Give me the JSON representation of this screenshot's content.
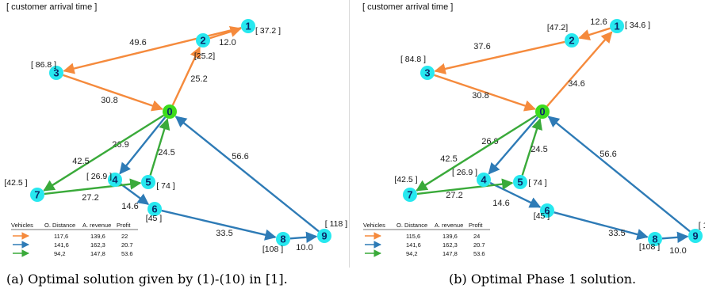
{
  "colors": {
    "orange": "#f58a3c",
    "blue": "#2e7bb6",
    "green": "#3aaa3a",
    "node": "#27e8ef",
    "depot": "#3cdc1c"
  },
  "panels": [
    {
      "header": "[ customer arrival time ]",
      "nodes": [
        {
          "id": "0",
          "depot": true
        },
        {
          "id": "1",
          "arrival": "[ 37.2 ]"
        },
        {
          "id": "2",
          "arrival": "[25.2]"
        },
        {
          "id": "3",
          "arrival": "[ 86.8 ]"
        },
        {
          "id": "4",
          "arrival": "[ 26.9 ]"
        },
        {
          "id": "5",
          "arrival": "[ 74 ]"
        },
        {
          "id": "6",
          "arrival": "[45 ]"
        },
        {
          "id": "7",
          "arrival": "[42.5 ]"
        },
        {
          "id": "8",
          "arrival": "[108 ]"
        },
        {
          "id": "9",
          "arrival": "[ 118 ]"
        }
      ],
      "edges": [
        {
          "from": "0",
          "to": "2",
          "color": "orange",
          "label": "25.2"
        },
        {
          "from": "2",
          "to": "1",
          "color": "orange",
          "label": "12.0"
        },
        {
          "from": "1",
          "to": "3",
          "color": "orange",
          "label": "49.6"
        },
        {
          "from": "3",
          "to": "0",
          "color": "orange",
          "label": "30.8"
        },
        {
          "from": "0",
          "to": "4",
          "color": "blue",
          "label": "26.9"
        },
        {
          "from": "4",
          "to": "6",
          "color": "blue",
          "label": "14.6"
        },
        {
          "from": "6",
          "to": "8",
          "color": "blue",
          "label": "33.5"
        },
        {
          "from": "8",
          "to": "9",
          "color": "blue",
          "label": "10.0"
        },
        {
          "from": "9",
          "to": "0",
          "color": "blue",
          "label": "56.6"
        },
        {
          "from": "0",
          "to": "7",
          "color": "green",
          "label": "42.5"
        },
        {
          "from": "7",
          "to": "5",
          "color": "green",
          "label": "27.2"
        },
        {
          "from": "5",
          "to": "0",
          "color": "green",
          "label": "24.5"
        }
      ],
      "table": {
        "headers": [
          "Vehicles",
          "O. Distance",
          "A. revenue",
          "Profit"
        ],
        "rows": [
          {
            "color": "orange",
            "cells": [
              "117,6",
              "139,6",
              "22"
            ]
          },
          {
            "color": "blue",
            "cells": [
              "141,6",
              "162,3",
              "20.7"
            ]
          },
          {
            "color": "green",
            "cells": [
              "94,2",
              "147,8",
              "53.6"
            ]
          }
        ]
      },
      "caption": "(a) Optimal solution given by (1)-(10) in [1]."
    },
    {
      "header": "[ customer arrival time ]",
      "nodes": [
        {
          "id": "0",
          "depot": true
        },
        {
          "id": "1",
          "arrival": "[ 34.6 ]"
        },
        {
          "id": "2",
          "arrival": "[47.2]"
        },
        {
          "id": "3",
          "arrival": "[ 84.8 ]"
        },
        {
          "id": "4",
          "arrival": "[ 26.9 ]"
        },
        {
          "id": "5",
          "arrival": "[ 74 ]"
        },
        {
          "id": "6",
          "arrival": "[45 ]"
        },
        {
          "id": "7",
          "arrival": "[42.5 ]"
        },
        {
          "id": "8",
          "arrival": "[108 ]"
        },
        {
          "id": "9",
          "arrival": "[ 118 ]"
        }
      ],
      "edges": [
        {
          "from": "0",
          "to": "1",
          "color": "orange",
          "label": "34.6"
        },
        {
          "from": "1",
          "to": "2",
          "color": "orange",
          "label": "12.6"
        },
        {
          "from": "2",
          "to": "3",
          "color": "orange",
          "label": "37.6"
        },
        {
          "from": "3",
          "to": "0",
          "color": "orange",
          "label": "30.8"
        },
        {
          "from": "0",
          "to": "4",
          "color": "blue",
          "label": "26.9"
        },
        {
          "from": "4",
          "to": "6",
          "color": "blue",
          "label": "14.6"
        },
        {
          "from": "6",
          "to": "8",
          "color": "blue",
          "label": "33.5"
        },
        {
          "from": "8",
          "to": "9",
          "color": "blue",
          "label": "10.0"
        },
        {
          "from": "9",
          "to": "0",
          "color": "blue",
          "label": "56.6"
        },
        {
          "from": "0",
          "to": "7",
          "color": "green",
          "label": "42.5"
        },
        {
          "from": "7",
          "to": "5",
          "color": "green",
          "label": "27.2"
        },
        {
          "from": "5",
          "to": "0",
          "color": "green",
          "label": "24.5"
        }
      ],
      "table": {
        "headers": [
          "Vehicles",
          "O. Distance",
          "A. revenue",
          "Profit"
        ],
        "rows": [
          {
            "color": "orange",
            "cells": [
              "115,6",
              "139,6",
              "24"
            ]
          },
          {
            "color": "blue",
            "cells": [
              "141,6",
              "162,3",
              "20.7"
            ]
          },
          {
            "color": "green",
            "cells": [
              "94,2",
              "147,8",
              "53.6"
            ]
          }
        ]
      },
      "caption": "(b) Optimal Phase 1 solution."
    }
  ]
}
